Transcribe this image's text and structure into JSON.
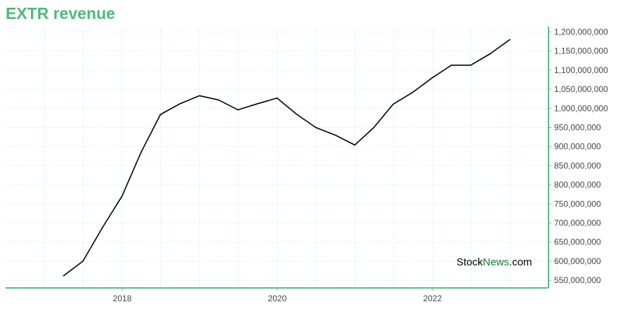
{
  "chart_data": {
    "type": "line",
    "title": "EXTR revenue",
    "xlabel": "",
    "ylabel": "",
    "x_ticks": [
      "2018",
      "2020",
      "2022"
    ],
    "y_ticks": [
      550000000,
      600000000,
      650000000,
      700000000,
      750000000,
      800000000,
      850000000,
      900000000,
      950000000,
      1000000000,
      1050000000,
      1100000000,
      1150000000,
      1200000000
    ],
    "ylim": [
      530000000,
      1210000000
    ],
    "xlim": [
      "2016-07-01",
      "2023-07-01"
    ],
    "grid": true,
    "colors": {
      "line": "#000000",
      "axis": "#5bbf86",
      "grid": "#b8e6cf",
      "title": "#4cba7a"
    },
    "series": [
      {
        "x": [
          "2017-03-31",
          "2017-06-30",
          "2017-09-30",
          "2017-12-31",
          "2018-03-31",
          "2018-06-30",
          "2018-09-30",
          "2018-12-31",
          "2019-03-31",
          "2019-06-30",
          "2019-09-30",
          "2019-12-31",
          "2020-03-31",
          "2020-06-30",
          "2020-09-30",
          "2020-12-31",
          "2021-03-31",
          "2021-06-30",
          "2021-09-30",
          "2021-12-31",
          "2022-03-31",
          "2022-06-30",
          "2022-09-30",
          "2022-12-31"
        ],
        "values": [
          562000000,
          600000000,
          688000000,
          770000000,
          885000000,
          984000000,
          1012000000,
          1033000000,
          1022000000,
          996000000,
          1012000000,
          1027000000,
          985000000,
          950000000,
          930000000,
          904000000,
          950000000,
          1011000000,
          1042000000,
          1080000000,
          1113000000,
          1113000000,
          1143000000,
          1180000000
        ]
      }
    ]
  },
  "watermark": {
    "part1": "Stock",
    "part2": "News",
    "part3": ".com"
  }
}
